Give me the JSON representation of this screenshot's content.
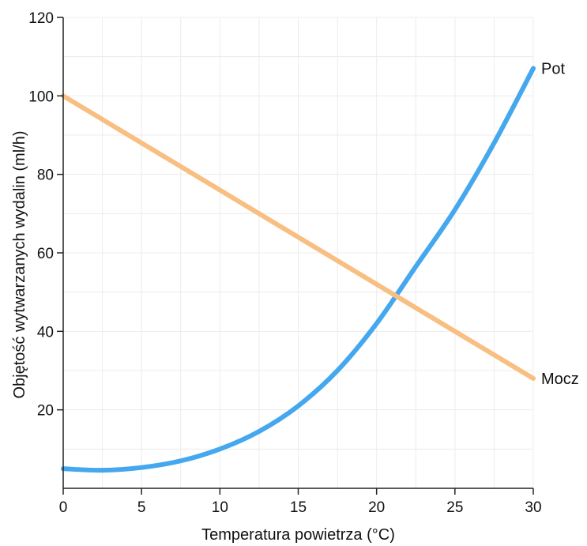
{
  "chart_data": {
    "type": "line",
    "title": "",
    "xlabel": "Temperatura powietrza (°C)",
    "ylabel": "Objętość wytwarzanych wydalin (ml/h)",
    "xlim": [
      0,
      30
    ],
    "ylim": [
      0,
      120
    ],
    "x_ticks": [
      0,
      5,
      10,
      15,
      20,
      25,
      30
    ],
    "y_ticks": [
      20,
      40,
      60,
      80,
      100,
      120
    ],
    "grid": true,
    "legend": "none",
    "series": [
      {
        "name": "Pot",
        "color": "#45a8ee",
        "x": [
          0,
          2.5,
          5,
          7.5,
          10,
          12.5,
          15,
          17.5,
          20,
          22.5,
          25,
          27.5,
          30
        ],
        "y": [
          5,
          4.6,
          5.3,
          7,
          10,
          14.5,
          21,
          30,
          42,
          56.5,
          71,
          88,
          107
        ]
      },
      {
        "name": "Mocz",
        "color": "#f8be82",
        "x": [
          0,
          30
        ],
        "y": [
          100,
          28
        ]
      }
    ]
  }
}
